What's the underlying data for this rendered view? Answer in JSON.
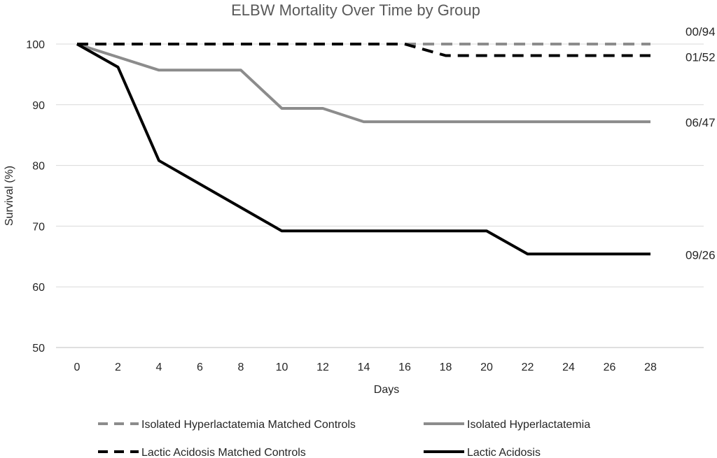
{
  "chart_data": {
    "type": "line",
    "title": "ELBW Mortality Over Time by Group",
    "xlabel": "Days",
    "ylabel": "Survival (%)",
    "xlim": [
      0,
      28
    ],
    "ylim": [
      50,
      100
    ],
    "x_ticks": [
      0,
      2,
      4,
      6,
      8,
      10,
      12,
      14,
      16,
      18,
      20,
      22,
      24,
      26,
      28
    ],
    "y_ticks": [
      50,
      60,
      70,
      80,
      90,
      100
    ],
    "grid": "horizontal",
    "legend_position": "bottom",
    "series": [
      {
        "name": "Isolated Hyperlactatemia Matched Controls",
        "color": "#8c8c8c",
        "style": "dashed",
        "end_label": "00/94",
        "points": [
          [
            0,
            100
          ],
          [
            28,
            100
          ]
        ]
      },
      {
        "name": "Isolated Hyperlactatemia",
        "color": "#8c8c8c",
        "style": "solid",
        "end_label": "06/47",
        "points": [
          [
            0,
            100
          ],
          [
            4,
            95.7
          ],
          [
            8,
            95.7
          ],
          [
            10,
            89.4
          ],
          [
            12,
            89.4
          ],
          [
            14,
            87.2
          ],
          [
            28,
            87.2
          ]
        ]
      },
      {
        "name": "Lactic Acidosis Matched Controls",
        "color": "#000000",
        "style": "dashed",
        "end_label": "01/52",
        "points": [
          [
            0,
            100
          ],
          [
            16,
            100
          ],
          [
            18,
            98.1
          ],
          [
            28,
            98.1
          ]
        ]
      },
      {
        "name": "Lactic Acidosis",
        "color": "#000000",
        "style": "solid",
        "end_label": "09/26",
        "points": [
          [
            0,
            100
          ],
          [
            2,
            96.2
          ],
          [
            4,
            80.8
          ],
          [
            10,
            69.2
          ],
          [
            20,
            69.2
          ],
          [
            22,
            65.4
          ],
          [
            28,
            65.4
          ]
        ]
      }
    ]
  }
}
